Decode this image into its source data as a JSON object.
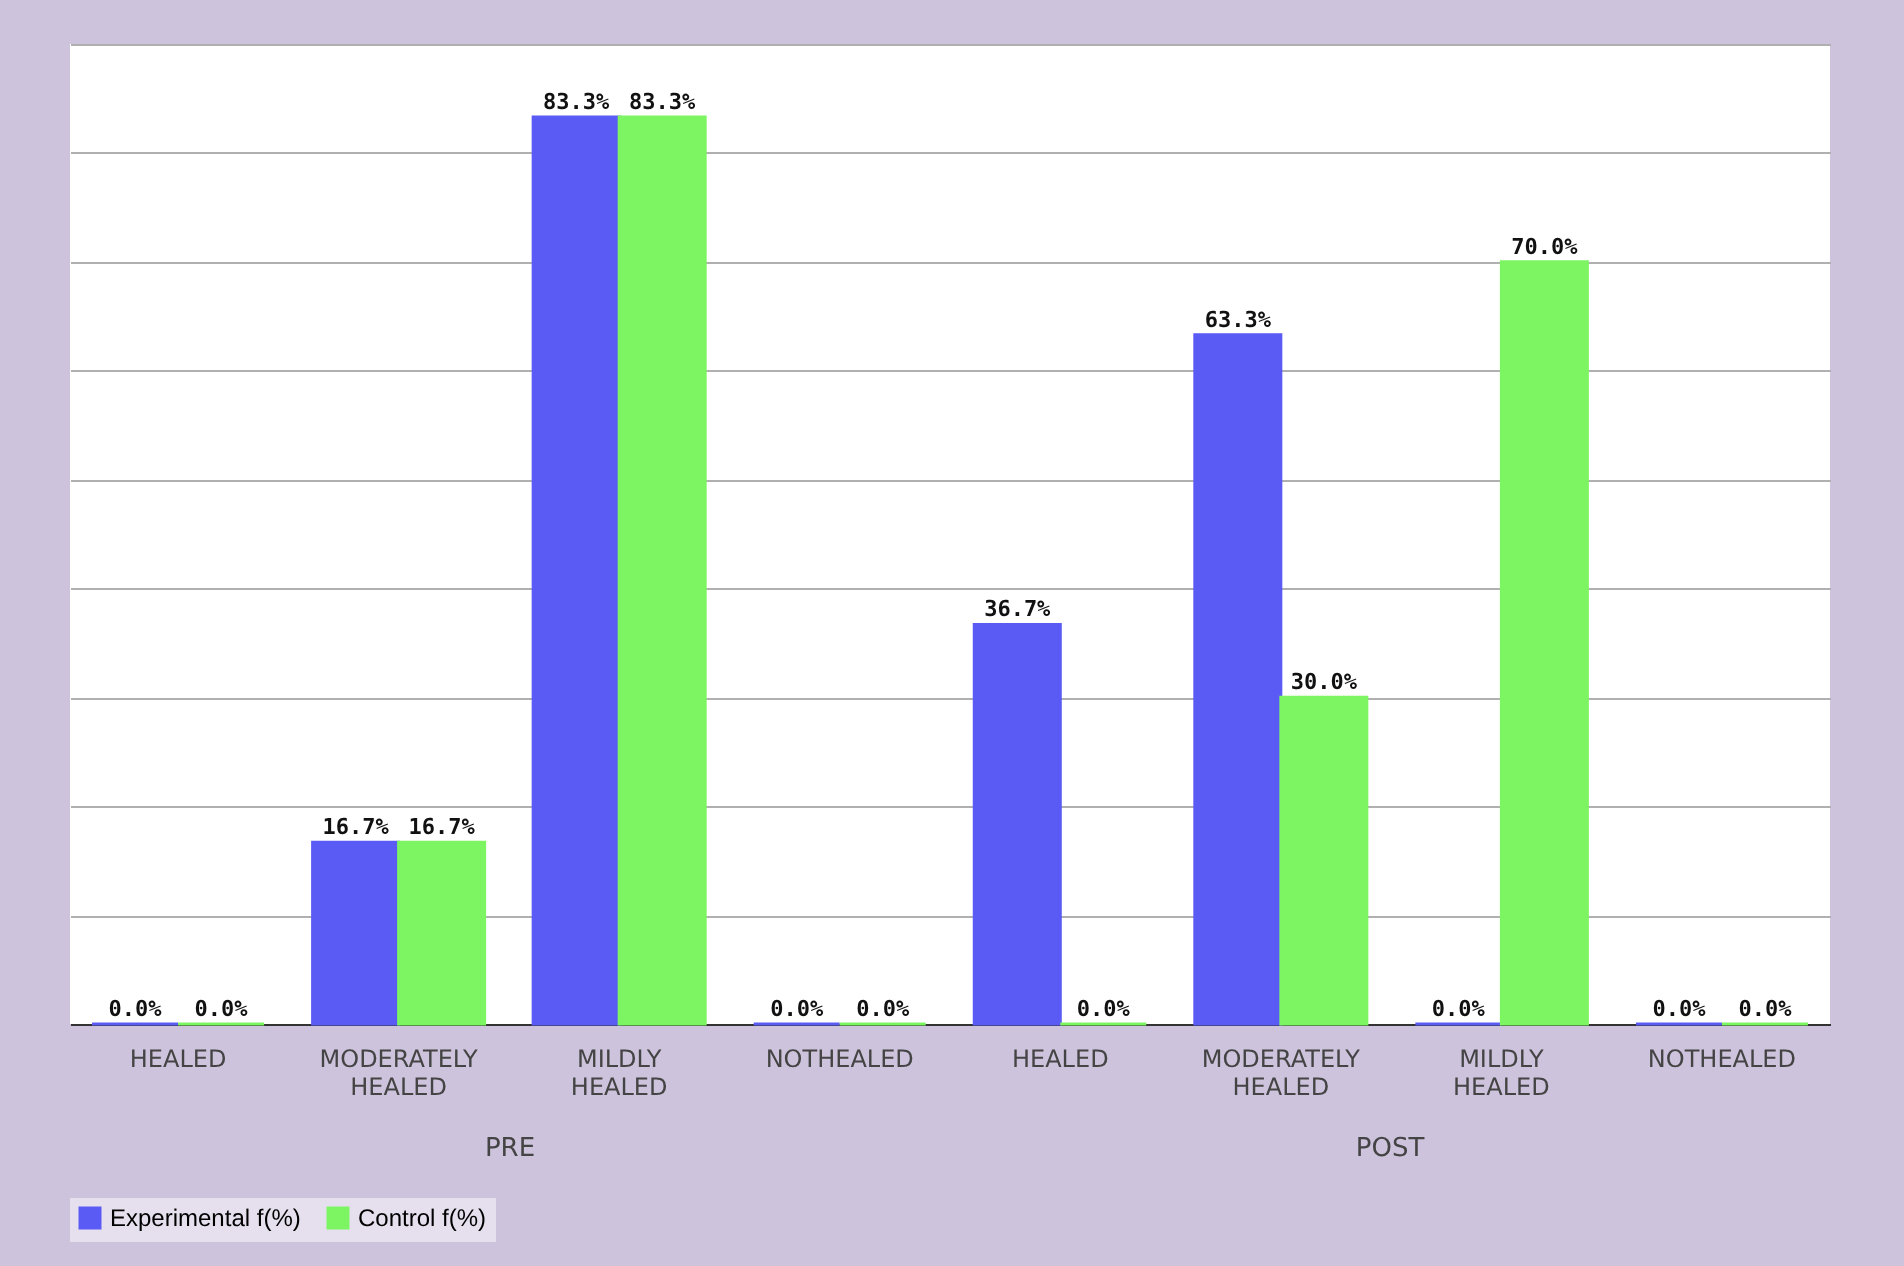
{
  "chart_data": {
    "type": "bar",
    "categories": [
      "HEALED",
      "MODERATELY HEALED",
      "MILDLY HEALED",
      "NOTHEALED",
      "HEALED",
      "MODERATELY HEALED",
      "MILDLY HEALED",
      "NOTHEALED"
    ],
    "series": [
      {
        "name": "Experimental f(%)",
        "color": "#5a5af5",
        "values": [
          0.0,
          16.7,
          83.3,
          0.0,
          36.7,
          63.3,
          0.0,
          0.0
        ],
        "value_labels": [
          "0.0%",
          "16.7%",
          "83.3%",
          "0.0%",
          "36.7%",
          "63.3%",
          "0.0%",
          "0.0%"
        ]
      },
      {
        "name": "Control f(%)",
        "color": "#7df562",
        "values": [
          0.0,
          16.7,
          83.3,
          0.0,
          0.0,
          30.0,
          70.0,
          0.0
        ],
        "value_labels": [
          "0.0%",
          "16.7%",
          "83.3%",
          "0.0%",
          "0.0%",
          "30.0%",
          "70.0%",
          "0.0%"
        ]
      }
    ],
    "ylim": [
      0,
      90
    ],
    "yticks": [
      {
        "value": 0,
        "label": null
      },
      {
        "value": 10,
        "label": null
      },
      {
        "value": 20,
        "label": null
      },
      {
        "value": 30,
        "label": null
      },
      {
        "value": 40,
        "label": null
      },
      {
        "value": 50,
        "label": null
      },
      {
        "value": 60,
        "label": null
      },
      {
        "value": 70,
        "label": null
      },
      {
        "value": 80,
        "label": null
      },
      {
        "value": 90,
        "label": null
      }
    ],
    "grid": "y",
    "tick_labels": "x",
    "legend": "bottom",
    "annotations": [
      "PRE",
      "POST"
    ]
  }
}
